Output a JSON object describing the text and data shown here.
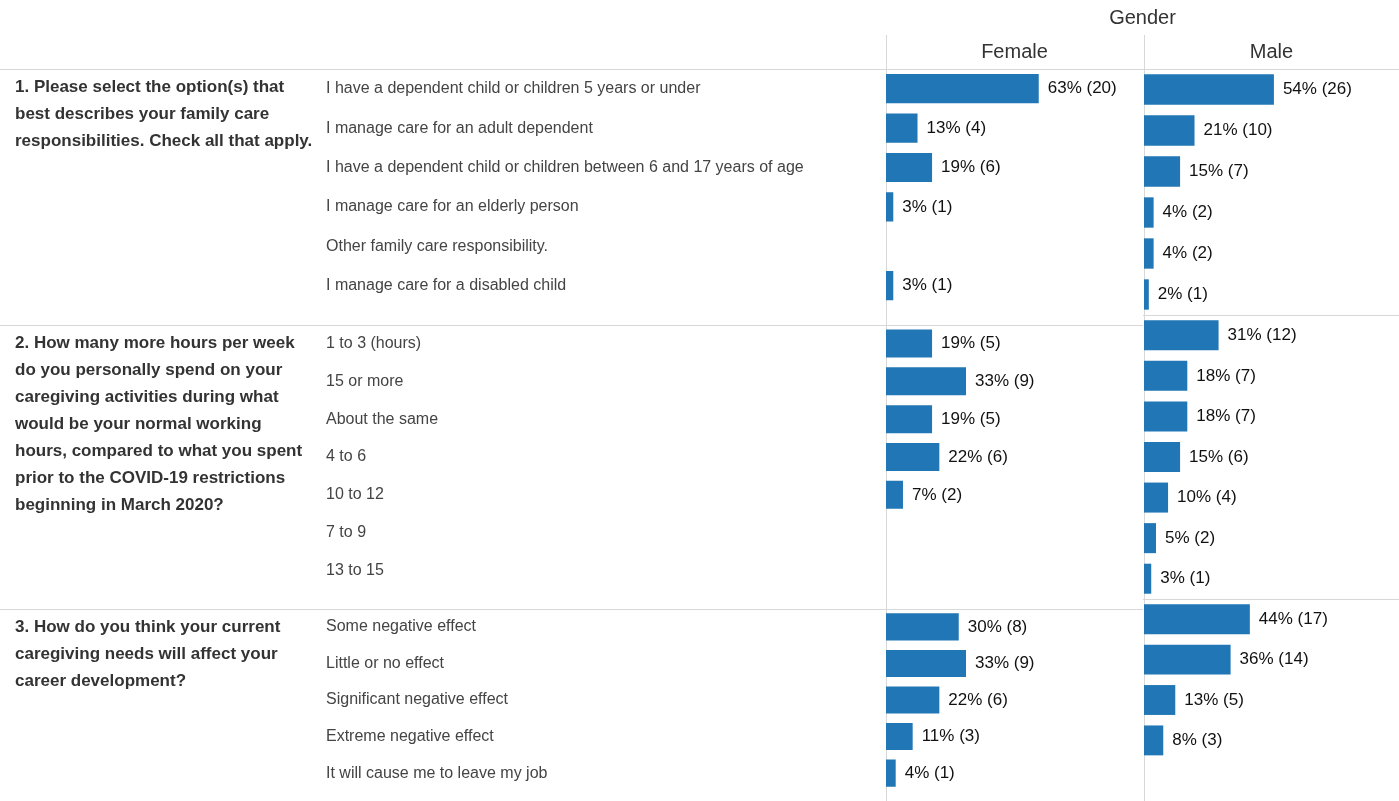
{
  "chart_data": [
    {
      "type": "bar",
      "orientation": "horizontal",
      "title": "Female",
      "ylabel": "1. Please select the option(s) that best describes your family care responsibilities. Check all that apply.",
      "color": "#2176b5",
      "xlim": [
        0,
        106
      ],
      "tick_labels": "y",
      "legend": false,
      "annotations": [
        "Gender"
      ],
      "categories": [
        "I have a dependent child or children 5 years or under",
        "I manage care for an adult dependent",
        "I have a dependent child or children between 6 and 17 years of age",
        "I manage care for an elderly person",
        "Other family care responsibility.",
        "I manage care for a disabled child"
      ],
      "values": [
        63,
        13,
        19,
        3,
        null,
        3
      ],
      "value_labels": [
        "63% (20)",
        "13% (4)",
        "19% (6)",
        "3% (1)",
        null,
        "3% (1)"
      ]
    },
    {
      "type": "bar",
      "orientation": "horizontal",
      "title": "Male",
      "color": "#2176b5",
      "xlim": [
        0,
        106
      ],
      "tick_labels": false,
      "legend": false,
      "categories": [
        null,
        null,
        null,
        null,
        null,
        null
      ],
      "values": [
        54,
        21,
        15,
        4,
        4,
        2
      ],
      "value_labels": [
        "54% (26)",
        "21% (10)",
        "15% (7)",
        "4% (2)",
        "4% (2)",
        "2% (1)"
      ]
    },
    {
      "type": "bar",
      "orientation": "horizontal",
      "ylabel": "2. How many more hours per week do you personally spend on your caregiving activities during what would be your normal working hours, compared to what you spent prior to the COVID-19 restrictions beginning in March 2020?",
      "color": "#2176b5",
      "xlim": [
        0,
        106
      ],
      "tick_labels": "y",
      "legend": false,
      "categories": [
        "1 to 3 (hours)",
        "15 or more",
        "About the same",
        "4 to 6",
        "10 to 12",
        "7 to 9",
        "13 to 15"
      ],
      "values": [
        19,
        33,
        19,
        22,
        7,
        null,
        null
      ],
      "value_labels": [
        "19% (5)",
        "33% (9)",
        "19% (5)",
        "22% (6)",
        "7% (2)",
        null,
        null
      ]
    },
    {
      "type": "bar",
      "orientation": "horizontal",
      "color": "#2176b5",
      "xlim": [
        0,
        106
      ],
      "tick_labels": false,
      "legend": false,
      "categories": [
        null,
        null,
        null,
        null,
        null,
        null,
        null
      ],
      "values": [
        31,
        18,
        18,
        15,
        10,
        5,
        3
      ],
      "value_labels": [
        "31% (12)",
        "18% (7)",
        "18% (7)",
        "15% (6)",
        "10% (4)",
        "5% (2)",
        "3% (1)"
      ]
    },
    {
      "type": "bar",
      "orientation": "horizontal",
      "ylabel": "3. How do you think your current caregiving needs will affect your career development?",
      "color": "#2176b5",
      "xlim": [
        0,
        106
      ],
      "tick_labels": "y",
      "legend": false,
      "categories": [
        "Some negative effect",
        "Little or no effect",
        "Significant negative effect",
        "Extreme negative effect",
        "It will cause me to leave my job"
      ],
      "values": [
        30,
        33,
        22,
        11,
        4
      ],
      "value_labels": [
        "30% (8)",
        "33% (9)",
        "22% (6)",
        "11% (3)",
        "4% (1)"
      ]
    },
    {
      "type": "bar",
      "orientation": "horizontal",
      "color": "#2176b5",
      "xlim": [
        0,
        106
      ],
      "tick_labels": false,
      "legend": false,
      "categories": [
        null,
        null,
        null,
        null,
        null
      ],
      "values": [
        44,
        36,
        13,
        8,
        null
      ],
      "value_labels": [
        "44% (17)",
        "36% (14)",
        "13% (5)",
        "8% (3)",
        null
      ]
    }
  ]
}
